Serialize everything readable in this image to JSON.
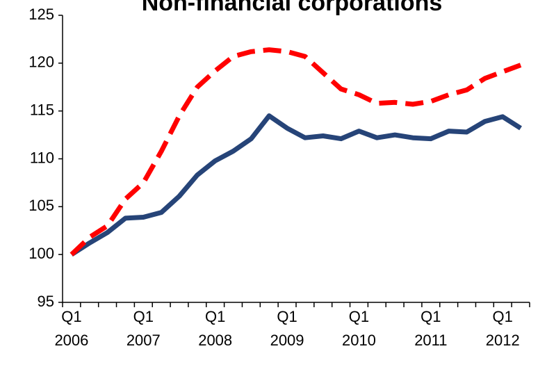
{
  "chart_data": {
    "type": "line",
    "title": "Non-financial corporations",
    "categories": [
      "Q1\n2006",
      null,
      null,
      null,
      "Q1\n2007",
      null,
      null,
      null,
      "Q1\n2008",
      null,
      null,
      null,
      "Q1\n2009",
      null,
      null,
      null,
      "Q1\n2010",
      null,
      null,
      null,
      "Q1\n2011",
      null,
      null,
      null,
      "Q1\n2012",
      null
    ],
    "series": [
      {
        "color": "#264478",
        "dash": false,
        "values": [
          100,
          101.2,
          102.3,
          103.8,
          103.9,
          104.4,
          106.1,
          108.3,
          109.8,
          110.8,
          112.1,
          114.5,
          113.2,
          112.2,
          112.4,
          112.1,
          112.9,
          112.2,
          112.5,
          112.2,
          112.1,
          112.9,
          112.8,
          113.9,
          114.4,
          113.2
        ]
      },
      {
        "color": "#ff0000",
        "dash": true,
        "values": [
          100,
          101.8,
          103,
          105.8,
          107.5,
          110.8,
          114.5,
          117.5,
          119.2,
          120.7,
          121.2,
          121.4,
          121.2,
          120.7,
          119,
          117.3,
          116.7,
          115.8,
          115.9,
          115.7,
          116,
          116.7,
          117.2,
          118.4,
          119.1,
          119.8
        ]
      }
    ],
    "ylim": [
      95,
      125
    ],
    "yticks": [
      95,
      100,
      105,
      110,
      115,
      120,
      125
    ],
    "grid": false
  }
}
